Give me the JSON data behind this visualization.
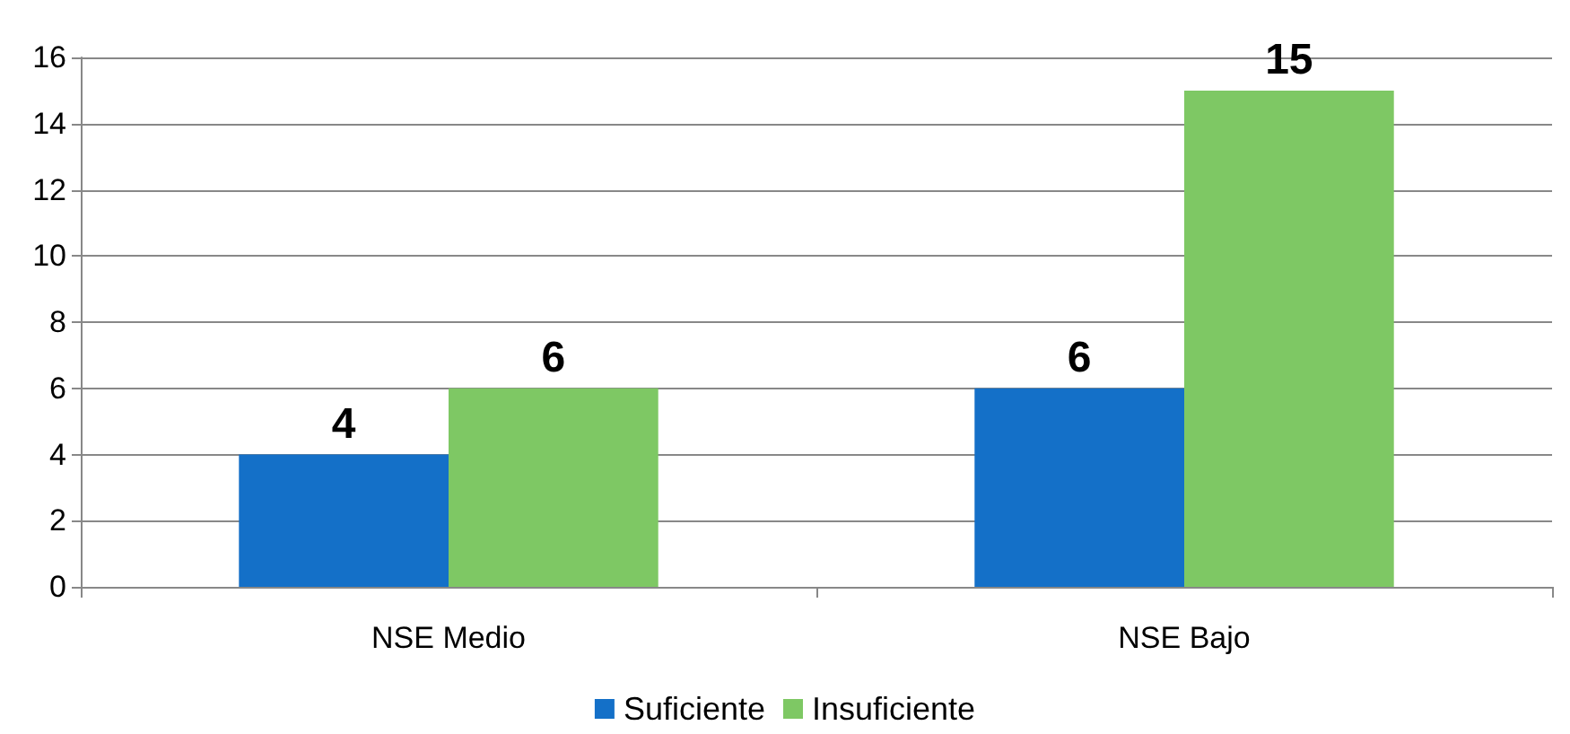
{
  "chart_data": {
    "type": "bar",
    "categories": [
      "NSE Medio",
      "NSE Bajo"
    ],
    "series": [
      {
        "name": "Suficiente",
        "color": "#1470c8",
        "values": [
          4,
          6
        ]
      },
      {
        "name": "Insuficiente",
        "color": "#7ec864",
        "values": [
          6,
          15
        ]
      }
    ],
    "ylim": [
      0,
      16
    ],
    "yticks": [
      0,
      2,
      4,
      6,
      8,
      10,
      12,
      14,
      16
    ],
    "grid": "y",
    "legend": "bottom",
    "data_labels": true
  }
}
